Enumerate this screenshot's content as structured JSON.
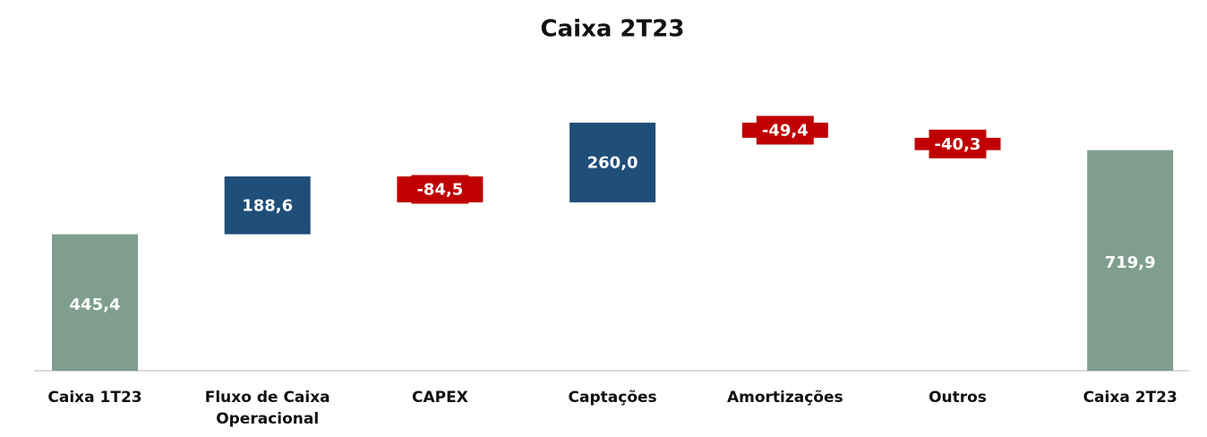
{
  "chart_data": {
    "type": "waterfall",
    "title": "Caixa 2T23",
    "categories": [
      "Caixa 1T23",
      "Fluxo de Caixa Operacional",
      "CAPEX",
      "Captações",
      "Amortizações",
      "Outros",
      "Caixa 2T23"
    ],
    "values": [
      445.4,
      188.6,
      -84.5,
      260.0,
      -49.4,
      -40.3,
      719.9
    ],
    "value_labels": [
      "445,4",
      "188,6",
      "-84,5",
      "260,0",
      "-49,4",
      "-40,3",
      "719,9"
    ],
    "measure": [
      "absolute",
      "relative",
      "relative",
      "relative",
      "relative",
      "relative",
      "absolute"
    ],
    "colors": [
      "#7f9e8f",
      "#1f4e79",
      "#c00000",
      "#1f4e79",
      "#c00000",
      "#c00000",
      "#7f9e8f"
    ],
    "ylim": [
      0,
      900
    ]
  }
}
